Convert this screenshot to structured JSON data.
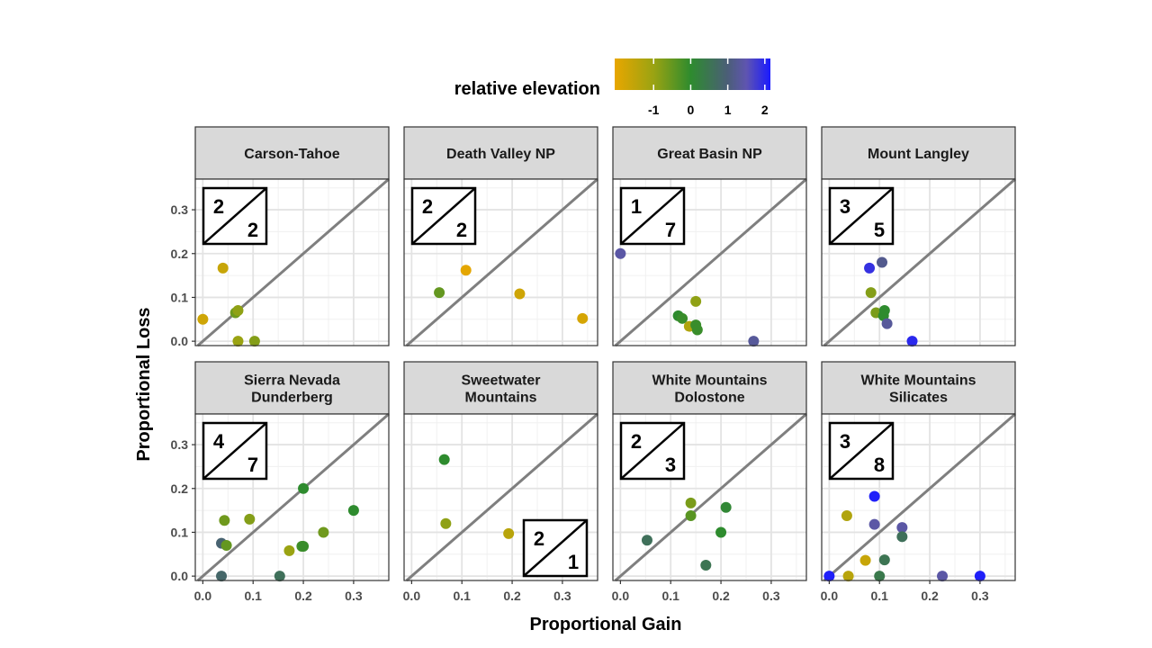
{
  "chart_data": {
    "type": "scatter",
    "xlabel": "Proportional Gain",
    "ylabel": "Proportional Loss",
    "xlim": [
      -0.015,
      0.37
    ],
    "ylim": [
      -0.01,
      0.37
    ],
    "x_ticks": [
      "0.0",
      "0.1",
      "0.2",
      "0.3"
    ],
    "y_ticks": [
      "0.0",
      "0.1",
      "0.2",
      "0.3"
    ],
    "reference_line": "y = x",
    "grid": true,
    "legend": {
      "title": "relative elevation",
      "placement": "top",
      "ticks": [
        "-1",
        "0",
        "1",
        "2"
      ],
      "tick_values": [
        -1,
        0,
        1,
        2
      ],
      "range": [
        -2.05,
        2.15
      ],
      "colors": [
        {
          "value": -2.05,
          "color": "#e8a600"
        },
        {
          "value": -1.0,
          "color": "#9aa312"
        },
        {
          "value": 0.0,
          "color": "#2e8b2e"
        },
        {
          "value": 1.0,
          "color": "#4b5e78"
        },
        {
          "value": 1.5,
          "color": "#5f55b0"
        },
        {
          "value": 2.15,
          "color": "#1a1aff"
        }
      ]
    },
    "panels": [
      {
        "title": [
          "Carson-Tahoe"
        ],
        "count_top": "2",
        "count_bottom": "2",
        "box_pos": "top-left",
        "points": [
          [
            0.0,
            0.05,
            -1.7
          ],
          [
            0.04,
            0.167,
            -1.6
          ],
          [
            0.065,
            0.065,
            -0.6
          ],
          [
            0.07,
            0.07,
            -0.9
          ],
          [
            0.07,
            0.0,
            -1.0
          ],
          [
            0.103,
            0.0,
            -0.8
          ]
        ]
      },
      {
        "title": [
          "Death Valley NP"
        ],
        "count_top": "2",
        "count_bottom": "2",
        "box_pos": "top-left",
        "points": [
          [
            0.055,
            0.111,
            -0.5
          ],
          [
            0.108,
            0.162,
            -2.0
          ],
          [
            0.215,
            0.108,
            -1.7
          ],
          [
            0.34,
            0.052,
            -1.8
          ]
        ]
      },
      {
        "title": [
          "Great Basin NP"
        ],
        "count_top": "1",
        "count_bottom": "7",
        "box_pos": "top-left",
        "points": [
          [
            0.0,
            0.2,
            1.4
          ],
          [
            0.115,
            0.058,
            0.0
          ],
          [
            0.123,
            0.052,
            -0.1
          ],
          [
            0.137,
            0.034,
            -1.3
          ],
          [
            0.15,
            0.091,
            -0.9
          ],
          [
            0.15,
            0.037,
            -0.1
          ],
          [
            0.153,
            0.026,
            -0.1
          ],
          [
            0.265,
            0.0,
            1.3
          ]
        ]
      },
      {
        "title": [
          "Mount Langley"
        ],
        "count_top": "3",
        "count_bottom": "5",
        "box_pos": "top-left",
        "points": [
          [
            0.08,
            0.167,
            1.9
          ],
          [
            0.083,
            0.111,
            -0.8
          ],
          [
            0.093,
            0.065,
            -0.7
          ],
          [
            0.105,
            0.18,
            1.2
          ],
          [
            0.108,
            0.058,
            0.0
          ],
          [
            0.11,
            0.07,
            0.0
          ],
          [
            0.115,
            0.04,
            1.3
          ],
          [
            0.165,
            0.0,
            2.0
          ]
        ]
      },
      {
        "title": [
          "Sierra Nevada",
          "Dunderberg"
        ],
        "count_top": "4",
        "count_bottom": "7",
        "box_pos": "top-left",
        "points": [
          [
            0.037,
            0.075,
            0.9
          ],
          [
            0.037,
            0.0,
            0.8
          ],
          [
            0.043,
            0.127,
            -0.6
          ],
          [
            0.047,
            0.07,
            -0.5
          ],
          [
            0.093,
            0.13,
            -0.8
          ],
          [
            0.153,
            0.0,
            0.6
          ],
          [
            0.172,
            0.058,
            -1.0
          ],
          [
            0.197,
            0.068,
            -0.2
          ],
          [
            0.2,
            0.068,
            -0.1
          ],
          [
            0.2,
            0.2,
            0.0
          ],
          [
            0.24,
            0.1,
            -0.6
          ],
          [
            0.3,
            0.15,
            0.0
          ]
        ]
      },
      {
        "title": [
          "Sweetwater",
          "Mountains"
        ],
        "count_top": "2",
        "count_bottom": "1",
        "box_pos": "bottom-right",
        "points": [
          [
            0.065,
            0.266,
            0.0
          ],
          [
            0.068,
            0.12,
            -0.9
          ],
          [
            0.193,
            0.097,
            -1.4
          ]
        ]
      },
      {
        "title": [
          "White Mountains",
          "Dolostone"
        ],
        "count_top": "2",
        "count_bottom": "3",
        "box_pos": "top-left",
        "points": [
          [
            0.053,
            0.082,
            0.6
          ],
          [
            0.14,
            0.167,
            -0.7
          ],
          [
            0.14,
            0.138,
            -0.4
          ],
          [
            0.17,
            0.025,
            0.5
          ],
          [
            0.2,
            0.1,
            0.0
          ],
          [
            0.21,
            0.157,
            0.1
          ]
        ]
      },
      {
        "title": [
          "White Mountains",
          "Silicates"
        ],
        "count_top": "3",
        "count_bottom": "8",
        "box_pos": "top-left",
        "points": [
          [
            0.0,
            0.0,
            2.1
          ],
          [
            0.035,
            0.138,
            -1.3
          ],
          [
            0.038,
            0.0,
            -1.4
          ],
          [
            0.072,
            0.036,
            -1.6
          ],
          [
            0.09,
            0.182,
            2.1
          ],
          [
            0.09,
            0.118,
            1.4
          ],
          [
            0.1,
            0.0,
            0.4
          ],
          [
            0.11,
            0.037,
            0.5
          ],
          [
            0.145,
            0.111,
            1.4
          ],
          [
            0.145,
            0.09,
            0.6
          ],
          [
            0.225,
            0.0,
            1.4
          ],
          [
            0.3,
            0.0,
            2.1
          ]
        ]
      }
    ]
  }
}
